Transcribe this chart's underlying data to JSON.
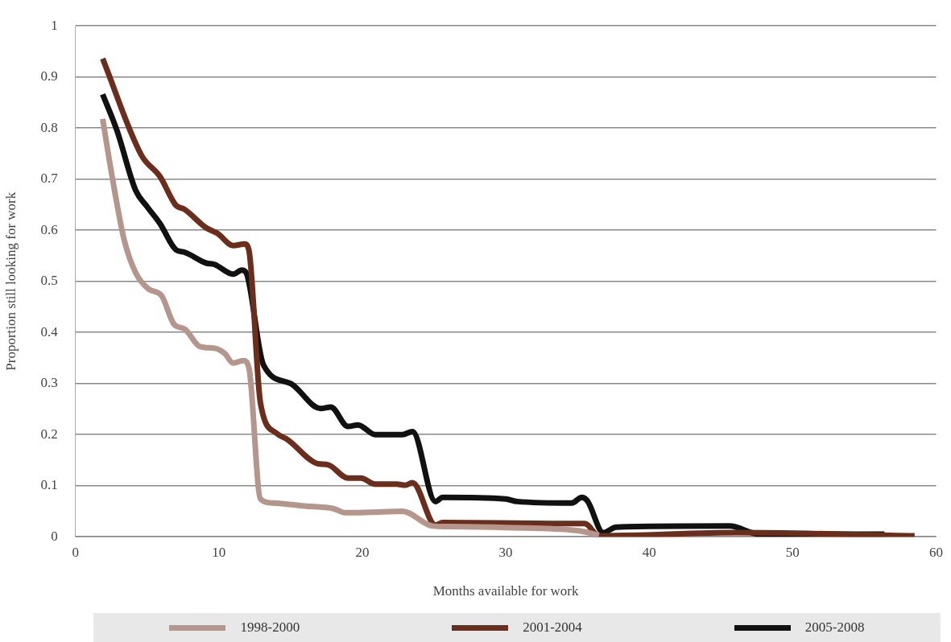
{
  "chart_data": {
    "type": "line",
    "xlabel": "Months available for work",
    "ylabel": "Proportion still looking for work",
    "xlim": [
      0,
      60
    ],
    "xticks": [
      0,
      10,
      20,
      30,
      40,
      50,
      60
    ],
    "ylim": [
      0,
      1
    ],
    "yticks": [
      0,
      0.1,
      0.2,
      0.3,
      0.4,
      0.5,
      0.6,
      0.7,
      0.8,
      0.9,
      1
    ],
    "grid": "y",
    "legend": "bottom",
    "marker": "none",
    "line_style": "solid",
    "series": [
      {
        "name": "1998-2000",
        "color": "#b5968d",
        "x": [
          1.9,
          2.5,
          3.4,
          4.2,
          5.1,
          6,
          6.9,
          7.6,
          8.7,
          9.7,
          10.4,
          11,
          11.7,
          12.1,
          12.9,
          13.8,
          16,
          18,
          18.8,
          20.5,
          22.8,
          24.9,
          26,
          30,
          35,
          36.5
        ],
        "values": [
          0.818,
          0.715,
          0.581,
          0.517,
          0.485,
          0.472,
          0.415,
          0.407,
          0.372,
          0.369,
          0.359,
          0.34,
          0.345,
          0.33,
          0.074,
          0.066,
          0.06,
          0.055,
          0.047,
          0.048,
          0.05,
          0.021,
          0.02,
          0.018,
          0.012,
          0.003
        ]
      },
      {
        "name": "2001-2004",
        "color": "#6b2e1c",
        "x": [
          1.9,
          4.6,
          5.9,
          7,
          7.6,
          9.1,
          9.9,
          11,
          11.8,
          12.1,
          12.9,
          14,
          14.8,
          16.9,
          17.6,
          19,
          19.9,
          20.9,
          22.4,
          23,
          23.5,
          25.1,
          25.6,
          33.3,
          35.5,
          36.5,
          46.2,
          58.5
        ],
        "values": [
          0.936,
          0.747,
          0.705,
          0.649,
          0.641,
          0.605,
          0.594,
          0.57,
          0.573,
          0.56,
          0.262,
          0.203,
          0.19,
          0.143,
          0.141,
          0.115,
          0.115,
          0.103,
          0.103,
          0.101,
          0.106,
          0.023,
          0.028,
          0.026,
          0.026,
          0.002,
          0.008,
          0.002
        ]
      },
      {
        "name": "2005-2008",
        "color": "#111111",
        "x": [
          1.9,
          2.9,
          4.2,
          5,
          5.9,
          7,
          7.6,
          9.1,
          9.7,
          11,
          11.6,
          11.9,
          13.1,
          15,
          17.1,
          17.8,
          19,
          19.7,
          20.9,
          22.8,
          23.5,
          25.1,
          25.6,
          30,
          30.8,
          34.6,
          35.3,
          35.7,
          36.8,
          37.7,
          45.6,
          47.7,
          56.4
        ],
        "values": [
          0.866,
          0.795,
          0.678,
          0.646,
          0.613,
          0.562,
          0.557,
          0.536,
          0.533,
          0.514,
          0.522,
          0.517,
          0.337,
          0.3,
          0.251,
          0.254,
          0.216,
          0.219,
          0.2,
          0.2,
          0.206,
          0.069,
          0.077,
          0.074,
          0.069,
          0.066,
          0.077,
          0.07,
          0.008,
          0.019,
          0.021,
          0.005,
          0.005
        ]
      }
    ]
  }
}
